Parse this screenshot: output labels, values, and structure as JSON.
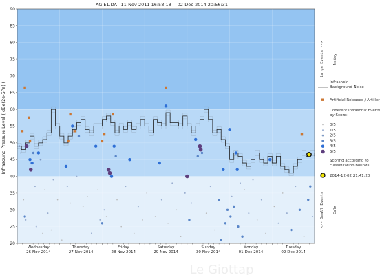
{
  "title": "AGIE1.DAT   11-Nov-2011 16:58:18  --  02-Dec-2014 20:56:31",
  "watermark": "Le Giottap",
  "chart_data": {
    "type": "line",
    "ylabel": "Infrasound Pressure Level  ( dBe(2e-5Pa) )",
    "ylim": [
      20,
      90
    ],
    "yticks": [
      20,
      25,
      30,
      35,
      40,
      45,
      50,
      55,
      60,
      65,
      70,
      75,
      80,
      85,
      90
    ],
    "xlim": [
      0,
      7
    ],
    "days": [
      {
        "name": "Wednesday",
        "date": "26-Nov-2014"
      },
      {
        "name": "Thursday",
        "date": "27-Nov-2014"
      },
      {
        "name": "Friday",
        "date": "28-Nov-2014"
      },
      {
        "name": "Saturday",
        "date": "29-Nov-2014"
      },
      {
        "name": "Sunday",
        "date": "30-Nov-2014"
      },
      {
        "name": "Monday",
        "date": "01-Dec-2014"
      },
      {
        "name": "Tuesday",
        "date": "02-Dec-2014"
      }
    ],
    "bands": [
      {
        "from": 60,
        "to": 90,
        "color": "#94c4f2"
      },
      {
        "from": 40,
        "to": 60,
        "color": "#b9d9f7"
      },
      {
        "from": 20,
        "to": 40,
        "color": "#e4f0fb"
      }
    ],
    "band_labels": [
      {
        "main": "Large Events -->",
        "sub": "Noisy",
        "from": 60,
        "to": 90
      },
      {
        "main": "<-- Small Events",
        "sub": "Calm",
        "from": 20,
        "to": 40
      }
    ],
    "noise_series": {
      "name": "Infrasonic Background Noise",
      "color": "#222222",
      "x": [
        0.0,
        0.1,
        0.2,
        0.3,
        0.4,
        0.5,
        0.6,
        0.7,
        0.8,
        0.9,
        1.0,
        1.1,
        1.2,
        1.3,
        1.4,
        1.5,
        1.6,
        1.7,
        1.8,
        1.9,
        2.0,
        2.1,
        2.2,
        2.3,
        2.4,
        2.5,
        2.6,
        2.7,
        2.8,
        2.9,
        3.0,
        3.1,
        3.2,
        3.3,
        3.4,
        3.5,
        3.6,
        3.7,
        3.8,
        3.9,
        4.0,
        4.1,
        4.2,
        4.3,
        4.4,
        4.5,
        4.6,
        4.7,
        4.8,
        4.9,
        5.0,
        5.1,
        5.2,
        5.3,
        5.4,
        5.5,
        5.6,
        5.7,
        5.8,
        5.9,
        6.0,
        6.1,
        6.2,
        6.3,
        6.4,
        6.5,
        6.6,
        6.7,
        6.8,
        6.9,
        7.0
      ],
      "y": [
        49,
        48,
        50,
        52,
        49,
        50,
        51,
        53,
        60,
        55,
        52,
        50,
        52,
        54,
        56,
        57,
        54,
        53,
        55,
        55,
        57,
        58,
        56,
        53,
        55,
        54,
        56,
        54,
        55,
        57,
        55,
        53,
        57,
        56,
        55,
        59,
        56,
        56,
        55,
        58,
        55,
        53,
        55,
        57,
        60,
        57,
        53,
        54,
        51,
        49,
        45,
        47,
        46,
        44,
        43,
        45,
        47,
        45,
        44,
        46,
        44,
        46,
        43,
        42,
        41,
        43,
        45,
        47,
        46,
        47,
        46
      ]
    },
    "categories": [
      {
        "name": "Artificial Releases / Artillery",
        "color": "#cc7733",
        "shape": "square"
      },
      {
        "name": "0/5",
        "color": "#b8b8b8",
        "size": 0.8
      },
      {
        "name": "1/5",
        "color": "#9aaed0",
        "size": 1.0
      },
      {
        "name": "2/5",
        "color": "#7f9ac4",
        "size": 1.3
      },
      {
        "name": "3/5",
        "color": "#5a86c8",
        "size": 1.7
      },
      {
        "name": "4/5",
        "color": "#2e6fd6",
        "size": 2.2
      },
      {
        "name": "5/5",
        "color": "#5e3f7e",
        "size": 2.8
      }
    ],
    "artillery": [
      {
        "x": 0.18,
        "y": 66.5
      },
      {
        "x": 0.28,
        "y": 57.5
      },
      {
        "x": 0.12,
        "y": 53.5
      },
      {
        "x": 0.3,
        "y": 50.5
      },
      {
        "x": 1.25,
        "y": 58.5
      },
      {
        "x": 1.35,
        "y": 53.5
      },
      {
        "x": 1.2,
        "y": 50.5
      },
      {
        "x": 2.25,
        "y": 58.5
      },
      {
        "x": 2.05,
        "y": 52.5
      },
      {
        "x": 2.0,
        "y": 50.5
      },
      {
        "x": 3.5,
        "y": 66.5
      },
      {
        "x": 6.7,
        "y": 52.5
      }
    ],
    "events": [
      {
        "x": 0.05,
        "y": 49,
        "s": 2
      },
      {
        "x": 0.08,
        "y": 47,
        "s": 1
      },
      {
        "x": 0.15,
        "y": 33,
        "s": 0
      },
      {
        "x": 0.18,
        "y": 28,
        "s": 3
      },
      {
        "x": 0.2,
        "y": 27,
        "s": 1
      },
      {
        "x": 0.22,
        "y": 49,
        "s": 5
      },
      {
        "x": 0.3,
        "y": 45,
        "s": 4
      },
      {
        "x": 0.32,
        "y": 42,
        "s": 5
      },
      {
        "x": 0.35,
        "y": 44,
        "s": 4
      },
      {
        "x": 0.38,
        "y": 47,
        "s": 3
      },
      {
        "x": 0.42,
        "y": 37,
        "s": 1
      },
      {
        "x": 0.45,
        "y": 25,
        "s": 1
      },
      {
        "x": 0.5,
        "y": 47,
        "s": 4
      },
      {
        "x": 0.55,
        "y": 45,
        "s": 2
      },
      {
        "x": 0.6,
        "y": 23,
        "s": 0
      },
      {
        "x": 0.65,
        "y": 36,
        "s": 0
      },
      {
        "x": 0.72,
        "y": 29,
        "s": 1
      },
      {
        "x": 0.8,
        "y": 24,
        "s": 0
      },
      {
        "x": 0.85,
        "y": 39,
        "s": 1
      },
      {
        "x": 0.95,
        "y": 33,
        "s": 0
      },
      {
        "x": 1.05,
        "y": 21,
        "s": 0
      },
      {
        "x": 1.15,
        "y": 43,
        "s": 4
      },
      {
        "x": 1.18,
        "y": 37,
        "s": 1
      },
      {
        "x": 1.25,
        "y": 32,
        "s": 0
      },
      {
        "x": 1.3,
        "y": 55,
        "s": 4
      },
      {
        "x": 1.4,
        "y": 40,
        "s": 1
      },
      {
        "x": 1.45,
        "y": 52,
        "s": 3
      },
      {
        "x": 1.55,
        "y": 31,
        "s": 0
      },
      {
        "x": 1.65,
        "y": 34,
        "s": 0
      },
      {
        "x": 1.75,
        "y": 23,
        "s": 1
      },
      {
        "x": 1.85,
        "y": 49,
        "s": 4
      },
      {
        "x": 1.9,
        "y": 36,
        "s": 0
      },
      {
        "x": 1.95,
        "y": 27,
        "s": 1
      },
      {
        "x": 2.0,
        "y": 26,
        "s": 3
      },
      {
        "x": 2.05,
        "y": 30,
        "s": 1
      },
      {
        "x": 2.1,
        "y": 28,
        "s": 0
      },
      {
        "x": 2.15,
        "y": 42,
        "s": 5
      },
      {
        "x": 2.18,
        "y": 41,
        "s": 5
      },
      {
        "x": 2.22,
        "y": 40,
        "s": 4
      },
      {
        "x": 2.28,
        "y": 49,
        "s": 4
      },
      {
        "x": 2.32,
        "y": 46,
        "s": 3
      },
      {
        "x": 2.35,
        "y": 33,
        "s": 0
      },
      {
        "x": 2.45,
        "y": 25,
        "s": 0
      },
      {
        "x": 2.55,
        "y": 37,
        "s": 1
      },
      {
        "x": 2.65,
        "y": 45,
        "s": 4
      },
      {
        "x": 2.75,
        "y": 23,
        "s": 0
      },
      {
        "x": 2.85,
        "y": 31,
        "s": 1
      },
      {
        "x": 2.95,
        "y": 27,
        "s": 0
      },
      {
        "x": 3.05,
        "y": 35,
        "s": 0
      },
      {
        "x": 3.15,
        "y": 20,
        "s": 1
      },
      {
        "x": 3.25,
        "y": 28,
        "s": 0
      },
      {
        "x": 3.35,
        "y": 44,
        "s": 4
      },
      {
        "x": 3.4,
        "y": 33,
        "s": 1
      },
      {
        "x": 3.5,
        "y": 61,
        "s": 4
      },
      {
        "x": 3.55,
        "y": 26,
        "s": 0
      },
      {
        "x": 3.65,
        "y": 38,
        "s": 1
      },
      {
        "x": 3.75,
        "y": 30,
        "s": 0
      },
      {
        "x": 3.85,
        "y": 22,
        "s": 0
      },
      {
        "x": 3.95,
        "y": 35,
        "s": 1
      },
      {
        "x": 4.0,
        "y": 40,
        "s": 5
      },
      {
        "x": 4.05,
        "y": 27,
        "s": 3
      },
      {
        "x": 4.1,
        "y": 32,
        "s": 1
      },
      {
        "x": 4.2,
        "y": 51,
        "s": 4
      },
      {
        "x": 4.25,
        "y": 46,
        "s": 3
      },
      {
        "x": 4.3,
        "y": 49,
        "s": 5
      },
      {
        "x": 4.32,
        "y": 48,
        "s": 5
      },
      {
        "x": 4.35,
        "y": 47,
        "s": 3
      },
      {
        "x": 4.45,
        "y": 29,
        "s": 0
      },
      {
        "x": 4.55,
        "y": 37,
        "s": 1
      },
      {
        "x": 4.65,
        "y": 24,
        "s": 0
      },
      {
        "x": 4.75,
        "y": 33,
        "s": 3
      },
      {
        "x": 4.8,
        "y": 21,
        "s": 3
      },
      {
        "x": 4.85,
        "y": 42,
        "s": 4
      },
      {
        "x": 4.9,
        "y": 26,
        "s": 3
      },
      {
        "x": 4.95,
        "y": 30,
        "s": 3
      },
      {
        "x": 5.0,
        "y": 54,
        "s": 4
      },
      {
        "x": 5.02,
        "y": 28,
        "s": 3
      },
      {
        "x": 5.05,
        "y": 34,
        "s": 1
      },
      {
        "x": 5.1,
        "y": 31,
        "s": 3
      },
      {
        "x": 5.15,
        "y": 47,
        "s": 4
      },
      {
        "x": 5.18,
        "y": 42,
        "s": 4
      },
      {
        "x": 5.2,
        "y": 25,
        "s": 3
      },
      {
        "x": 5.25,
        "y": 38,
        "s": 1
      },
      {
        "x": 5.3,
        "y": 22,
        "s": 3
      },
      {
        "x": 5.35,
        "y": 36,
        "s": 0
      },
      {
        "x": 5.45,
        "y": 29,
        "s": 1
      },
      {
        "x": 5.55,
        "y": 39,
        "s": 1
      },
      {
        "x": 5.65,
        "y": 27,
        "s": 0
      },
      {
        "x": 5.75,
        "y": 33,
        "s": 1
      },
      {
        "x": 5.85,
        "y": 23,
        "s": 0
      },
      {
        "x": 5.95,
        "y": 45,
        "s": 4
      },
      {
        "x": 6.05,
        "y": 31,
        "s": 0
      },
      {
        "x": 6.15,
        "y": 26,
        "s": 1
      },
      {
        "x": 6.25,
        "y": 35,
        "s": 0
      },
      {
        "x": 6.35,
        "y": 29,
        "s": 1
      },
      {
        "x": 6.45,
        "y": 24,
        "s": 3
      },
      {
        "x": 6.55,
        "y": 37,
        "s": 1
      },
      {
        "x": 6.65,
        "y": 30,
        "s": 3
      },
      {
        "x": 6.75,
        "y": 22,
        "s": 0
      },
      {
        "x": 6.85,
        "y": 33,
        "s": 3
      },
      {
        "x": 6.9,
        "y": 37,
        "s": 3
      },
      {
        "x": 6.95,
        "y": 28,
        "s": 1
      }
    ],
    "scoring_note": "Scoring according to classification bounds",
    "marker": {
      "label": "2014-12-02 21:41:20",
      "x": 7.0,
      "y": 46.5,
      "color": "#f2e600"
    }
  }
}
